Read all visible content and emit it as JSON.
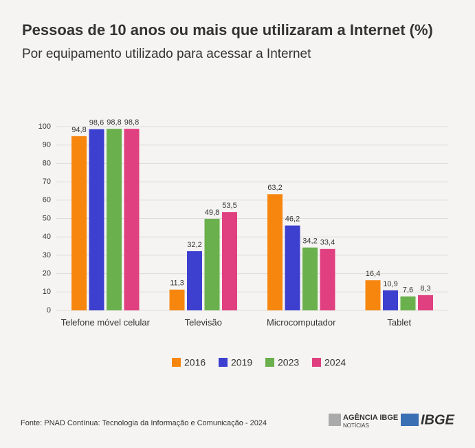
{
  "chart_data": {
    "type": "bar",
    "title": "Pessoas de 10 anos ou mais que utilizaram a Internet (%)",
    "subtitle": "Por equipamento utilizado para acessar a Internet",
    "categories": [
      "Telefone móvel celular",
      "Televisão",
      "Microcomputador",
      "Tablet"
    ],
    "series": [
      {
        "name": "2016",
        "color": "#f7860f",
        "values": [
          94.8,
          11.3,
          63.2,
          16.4
        ],
        "value_labels": [
          "94,8",
          "11,3",
          "63,2",
          "16,4"
        ]
      },
      {
        "name": "2019",
        "color": "#3d3fcf",
        "values": [
          98.6,
          32.2,
          46.2,
          10.9
        ],
        "value_labels": [
          "98,6",
          "32,2",
          "46,2",
          "10,9"
        ]
      },
      {
        "name": "2023",
        "color": "#6ab04c",
        "values": [
          98.8,
          49.8,
          34.2,
          7.6
        ],
        "value_labels": [
          "98,8",
          "49,8",
          "34,2",
          "7,6"
        ]
      },
      {
        "name": "2024",
        "color": "#e0407f",
        "values": [
          98.8,
          53.5,
          33.4,
          8.3
        ],
        "value_labels": [
          "98,8",
          "53,5",
          "33,4",
          "8,3"
        ]
      }
    ],
    "ylim": [
      0,
      100
    ],
    "yticks": [
      0,
      10,
      20,
      30,
      40,
      50,
      60,
      70,
      80,
      90,
      100
    ],
    "grid": true
  },
  "footer": {
    "source": "Fonte: PNAD Contínua: Tecnologia da Informação e Comunicação - 2024",
    "logo_agencia": "AGÊNCIA IBGE",
    "logo_noticias": "NOTÍCIAS",
    "logo_ibge": "IBGE"
  }
}
